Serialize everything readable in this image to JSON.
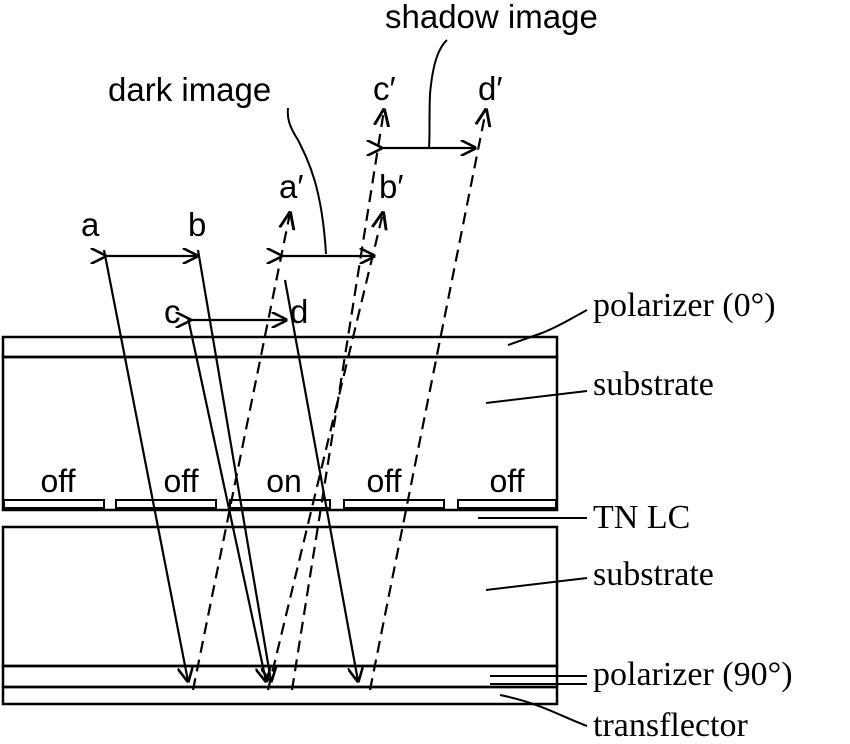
{
  "labels": {
    "shadow_image": "shadow image",
    "dark_image": "dark image",
    "a": "a",
    "b": "b",
    "c": "c",
    "d": "d",
    "a_prime": "a′",
    "b_prime": "b′",
    "c_prime": "c′",
    "d_prime": "d′"
  },
  "pixels": [
    "off",
    "off",
    "on",
    "off",
    "off"
  ],
  "layers": {
    "polarizer_top": "polarizer (0°)",
    "substrate_top": "substrate",
    "tn_lc": "TN LC",
    "substrate_bottom": "substrate",
    "polarizer_bottom": "polarizer (90°)",
    "transflector": "transflector"
  },
  "colors": {
    "ink": "#000000",
    "background": "#ffffff"
  }
}
